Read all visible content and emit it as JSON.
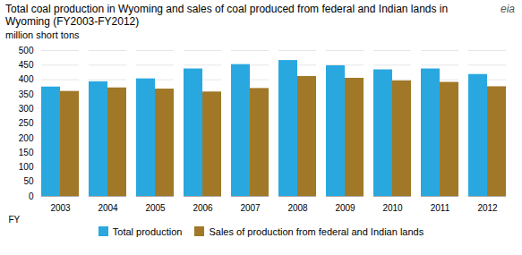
{
  "chart_data": {
    "type": "bar",
    "title": "Total coal production in Wyoming and sales of coal produced from federal and Indian lands in Wyoming (FY2003-FY2012)",
    "subtitle": "million short tons",
    "xlabel": "FY",
    "annotations": [
      "eia"
    ],
    "categories": [
      "2003",
      "2004",
      "2005",
      "2006",
      "2007",
      "2008",
      "2009",
      "2010",
      "2011",
      "2012"
    ],
    "series": [
      {
        "name": "Total production",
        "color": "#29A8E0",
        "values": [
          375,
          393,
          403,
          437,
          452,
          466,
          448,
          434,
          437,
          418
        ]
      },
      {
        "name": "Sales of production from federal and Indian lands",
        "color": "#A07828",
        "values": [
          360,
          372,
          368,
          358,
          370,
          411,
          405,
          396,
          391,
          376
        ]
      }
    ],
    "ylim": [
      0,
      500
    ],
    "yticks": [
      0,
      50,
      100,
      150,
      200,
      250,
      300,
      350,
      400,
      450,
      500
    ],
    "grid": true,
    "legend": "bottom"
  }
}
